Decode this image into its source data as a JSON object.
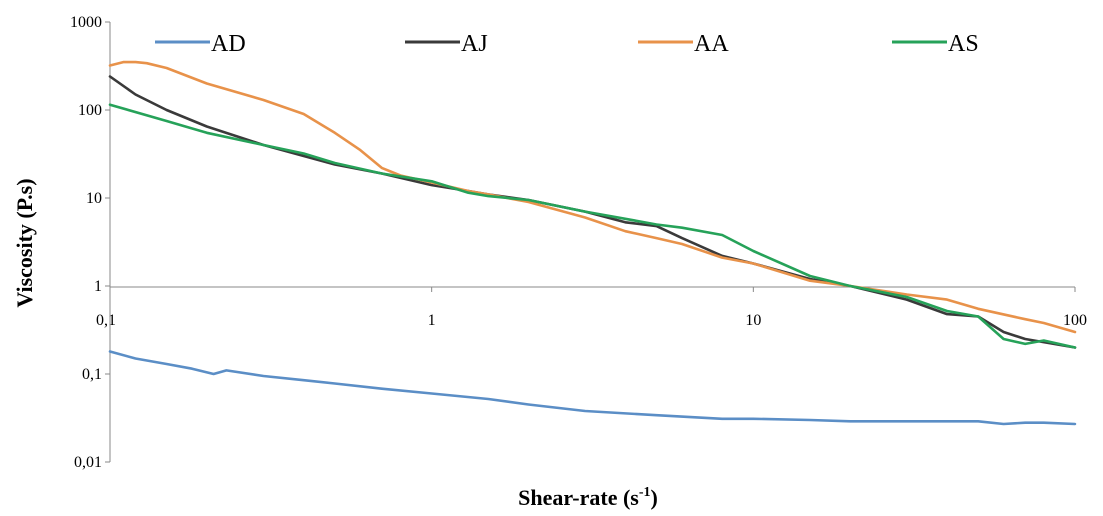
{
  "chart_data": {
    "type": "line",
    "xlabel": "Shear-rate (s",
    "xlabel_sup": "-1",
    "xlabel_close": ")",
    "ylabel": "Viscosity (P.s)",
    "x_scale": "log",
    "y_scale": "log",
    "xlim": [
      0.1,
      100
    ],
    "ylim": [
      0.01,
      1000
    ],
    "x_ticks": [
      0.1,
      1,
      10,
      100
    ],
    "x_tick_labels": [
      "0,1",
      "1",
      "10",
      "100"
    ],
    "y_ticks": [
      0.01,
      0.1,
      1,
      10,
      100,
      1000
    ],
    "y_tick_labels": [
      "0,01",
      "0,1",
      "1",
      "10",
      "100",
      "1000"
    ],
    "grid": false,
    "legend_position": "top",
    "series": [
      {
        "name": "AD",
        "color": "#5b8ec6",
        "x": [
          0.1,
          0.12,
          0.15,
          0.18,
          0.21,
          0.23,
          0.3,
          0.4,
          0.5,
          0.7,
          1,
          1.5,
          2,
          3,
          5,
          8,
          10,
          15,
          20,
          30,
          40,
          50,
          60,
          70,
          80,
          100
        ],
        "y": [
          0.18,
          0.15,
          0.13,
          0.115,
          0.1,
          0.11,
          0.095,
          0.085,
          0.078,
          0.068,
          0.06,
          0.052,
          0.045,
          0.038,
          0.034,
          0.031,
          0.031,
          0.03,
          0.029,
          0.029,
          0.029,
          0.029,
          0.027,
          0.028,
          0.028,
          0.027
        ]
      },
      {
        "name": "AJ",
        "color": "#3a3a3a",
        "x": [
          0.1,
          0.12,
          0.15,
          0.2,
          0.3,
          0.4,
          0.5,
          0.7,
          1,
          1.3,
          1.5,
          2,
          3,
          4,
          5,
          6,
          8,
          10,
          15,
          20,
          30,
          40,
          50,
          60,
          70,
          100
        ],
        "y": [
          240,
          150,
          100,
          65,
          40,
          30,
          24,
          19,
          14,
          12,
          11,
          9.5,
          7,
          5.3,
          4.8,
          3.5,
          2.2,
          1.8,
          1.2,
          1.0,
          0.7,
          0.48,
          0.45,
          0.3,
          0.25,
          0.2
        ]
      },
      {
        "name": "AA",
        "color": "#e8924a",
        "x": [
          0.1,
          0.11,
          0.12,
          0.13,
          0.15,
          0.2,
          0.3,
          0.4,
          0.5,
          0.6,
          0.7,
          0.8,
          1,
          1.3,
          1.5,
          2,
          3,
          4,
          5,
          6,
          8,
          10,
          15,
          20,
          30,
          40,
          50,
          70,
          80,
          100
        ],
        "y": [
          320,
          350,
          350,
          340,
          300,
          200,
          130,
          90,
          55,
          35,
          22,
          18,
          15,
          12,
          11,
          9,
          6,
          4.2,
          3.5,
          3,
          2.1,
          1.8,
          1.15,
          1.0,
          0.8,
          0.7,
          0.55,
          0.42,
          0.38,
          0.3
        ]
      },
      {
        "name": "AS",
        "color": "#26a259",
        "x": [
          0.1,
          0.15,
          0.2,
          0.3,
          0.4,
          0.5,
          0.7,
          1,
          1.3,
          1.5,
          2,
          3,
          4,
          5,
          6,
          8,
          10,
          15,
          20,
          30,
          40,
          50,
          60,
          70,
          80,
          100
        ],
        "y": [
          115,
          75,
          55,
          40,
          32,
          25,
          19,
          15.5,
          11.5,
          10.5,
          9.5,
          7,
          5.8,
          5,
          4.6,
          3.8,
          2.5,
          1.3,
          1.0,
          0.75,
          0.52,
          0.45,
          0.25,
          0.22,
          0.24,
          0.2
        ]
      }
    ]
  }
}
